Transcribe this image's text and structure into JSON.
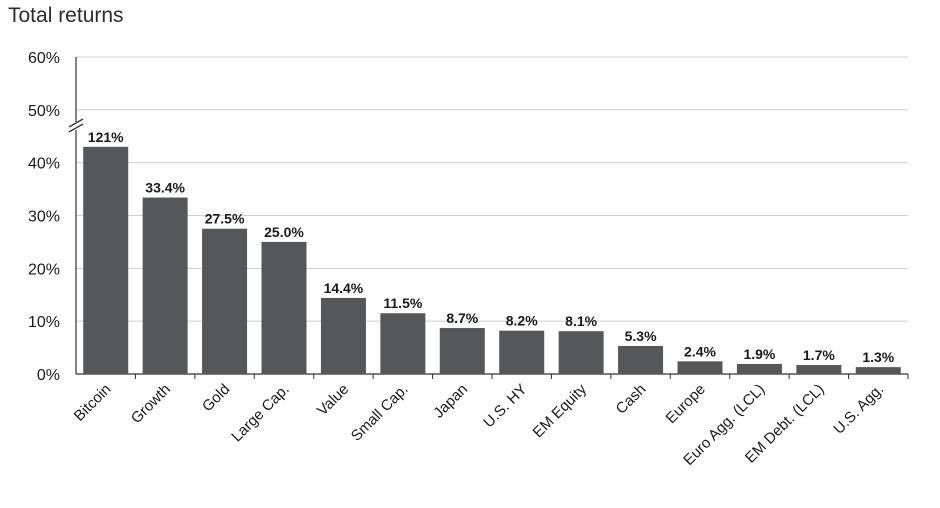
{
  "chart_data": {
    "type": "bar",
    "title": "Total returns",
    "xlabel": "",
    "ylabel": "",
    "ylim": [
      0,
      60
    ],
    "yticks": [
      "0%",
      "10%",
      "20%",
      "30%",
      "40%",
      "50%",
      "60%"
    ],
    "axis_break": "between 40% and 50% on y-axis",
    "grid": true,
    "bar_color": "#555759",
    "categories": [
      "Bitcoin",
      "Growth",
      "Gold",
      "Large Cap.",
      "Value",
      "Small Cap.",
      "Japan",
      "U.S. HY",
      "EM Equity",
      "Cash",
      "Europe",
      "Euro Agg. (LCL)",
      "EM Debt. (LCL)",
      "U.S. Agg."
    ],
    "values": [
      121,
      33.4,
      27.5,
      25.0,
      14.4,
      11.5,
      8.7,
      8.2,
      8.1,
      5.3,
      2.4,
      1.9,
      1.7,
      1.3
    ],
    "data_labels": [
      "121%",
      "33.4%",
      "27.5%",
      "25.0%",
      "14.4%",
      "11.5%",
      "8.7%",
      "8.2%",
      "8.1%",
      "5.3%",
      "2.4%",
      "1.9%",
      "1.7%",
      "1.3%"
    ]
  }
}
